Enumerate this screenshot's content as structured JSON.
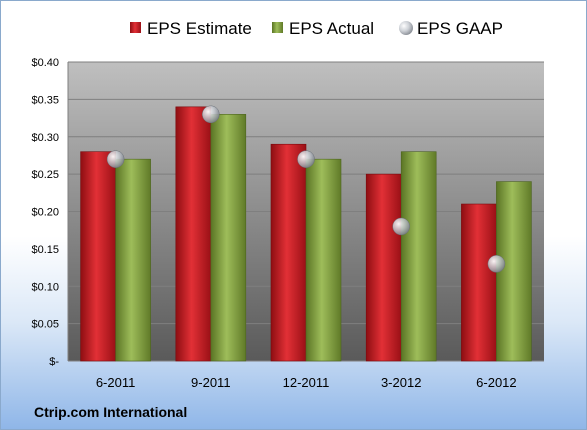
{
  "chart_data": {
    "type": "bar",
    "categories": [
      "6-2011",
      "9-2011",
      "12-2011",
      "3-2012",
      "6-2012"
    ],
    "series": [
      {
        "name": "EPS Estimate",
        "kind": "bar",
        "color": "#c0141e",
        "values": [
          0.28,
          0.34,
          0.29,
          0.25,
          0.21
        ]
      },
      {
        "name": "EPS Actual",
        "kind": "bar",
        "color": "#7a9a3a",
        "values": [
          0.27,
          0.33,
          0.27,
          0.28,
          0.24
        ]
      },
      {
        "name": "EPS GAAP",
        "kind": "marker",
        "color": "#b8bcc4",
        "values": [
          0.27,
          0.33,
          0.27,
          0.18,
          0.13
        ]
      }
    ],
    "yticks": [
      "$-",
      "$0.05",
      "$0.10",
      "$0.15",
      "$0.20",
      "$0.25",
      "$0.30",
      "$0.35",
      "$0.40"
    ],
    "ylim": [
      0,
      0.4
    ],
    "grid": true,
    "legend_position": "top",
    "footer": "Ctrip.com International"
  }
}
